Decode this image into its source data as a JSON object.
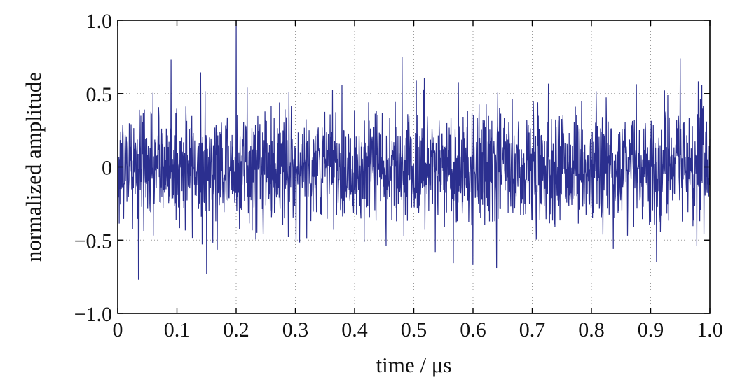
{
  "chart_data": {
    "type": "line",
    "title": "",
    "xlabel": "time / μs",
    "ylabel": "normalized amplitude",
    "xlim": [
      0,
      1.0
    ],
    "ylim": [
      -1.0,
      1.0
    ],
    "grid": true,
    "legend": "none",
    "x_ticks": [
      0,
      0.1,
      0.2,
      0.3,
      0.4,
      0.5,
      0.6,
      0.7,
      0.8,
      0.9,
      1.0
    ],
    "x_tick_labels": [
      "0",
      "0.1",
      "0.2",
      "0.3",
      "0.4",
      "0.5",
      "0.6",
      "0.7",
      "0.8",
      "0.9",
      "1.0"
    ],
    "y_ticks": [
      -1.0,
      -0.5,
      0,
      0.5,
      1.0
    ],
    "y_tick_labels": [
      "−1.0",
      "−0.5",
      "0",
      "0.5",
      "1.0"
    ],
    "series": [
      {
        "color": "#2b2f8f",
        "sample_count": 2000,
        "noise_amplitude_range": [
          -0.77,
          0.75
        ],
        "features": [
          {
            "x": 0.2,
            "y": 1.0,
            "note": "peak"
          },
          {
            "x": 0.035,
            "y": -0.77
          },
          {
            "x": 0.15,
            "y": -0.73
          },
          {
            "x": 0.09,
            "y": 0.73
          },
          {
            "x": 0.48,
            "y": 0.75
          },
          {
            "x": 0.95,
            "y": 0.74
          },
          {
            "x": 0.6,
            "y": -0.67
          },
          {
            "x": 0.64,
            "y": -0.69
          },
          {
            "x": 0.91,
            "y": -0.65
          }
        ]
      }
    ]
  }
}
